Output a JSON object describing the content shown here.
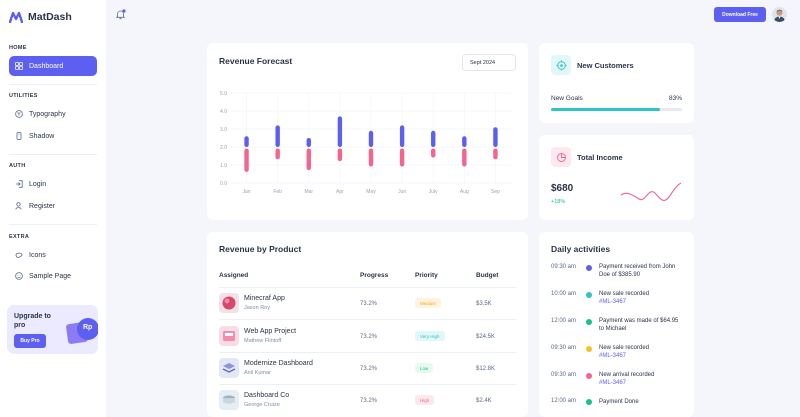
{
  "app": {
    "name": "MatDash"
  },
  "sidebar": {
    "sections": [
      {
        "title": "HOME",
        "items": [
          {
            "label": "Dashboard",
            "icon": "dashboard-icon",
            "active": true
          }
        ]
      },
      {
        "title": "UTILITIES",
        "items": [
          {
            "label": "Typography",
            "icon": "typography-icon"
          },
          {
            "label": "Shadow",
            "icon": "shadow-icon"
          }
        ]
      },
      {
        "title": "AUTH",
        "items": [
          {
            "label": "Login",
            "icon": "login-icon"
          },
          {
            "label": "Register",
            "icon": "register-icon"
          }
        ]
      },
      {
        "title": "EXTRA",
        "items": [
          {
            "label": "Icons",
            "icon": "icons-icon"
          },
          {
            "label": "Sample Page",
            "icon": "sample-page-icon"
          }
        ]
      }
    ],
    "promo": {
      "title": "Upgrade to pro",
      "button": "Buy Pro",
      "badge": "Rp"
    }
  },
  "topbar": {
    "download_label": "Download Free"
  },
  "revenue_forecast": {
    "title": "Revenue Forecast",
    "period": "Sept 2024"
  },
  "chart_data": {
    "type": "bar",
    "title": "Revenue Forecast",
    "categories": [
      "Jan",
      "Feb",
      "Mar",
      "Apr",
      "May",
      "Jun",
      "July",
      "Aug",
      "Sep"
    ],
    "ylim": [
      0,
      5
    ],
    "yticks": [
      "5.0",
      "4.0",
      "3.0",
      "2.0",
      "1.0",
      "0.0"
    ],
    "series": [
      {
        "color": "#5d5ff0",
        "values": [
          0.6,
          1.2,
          0.5,
          1.7,
          0.9,
          1.2,
          0.9,
          0.6,
          1.1
        ]
      },
      {
        "color": "#f3648f",
        "values": [
          1.3,
          0.6,
          1.2,
          0.7,
          1.0,
          1.0,
          0.5,
          1.0,
          0.6
        ]
      }
    ],
    "grid": true
  },
  "revenue_by_product": {
    "title": "Revenue by Product",
    "headers": [
      "Assigned",
      "Progress",
      "Priority",
      "Budget"
    ],
    "rows": [
      {
        "name": "Minecraf App",
        "owner": "Jason Roy",
        "progress": "73.2%",
        "priority": "Medium",
        "budget": "$3.5K",
        "badge_bg": "#fff4de",
        "badge_fg": "#f8a526",
        "img": "minecraft"
      },
      {
        "name": "Web App Project",
        "owner": "Mathew Flintoff",
        "progress": "73.2%",
        "priority": "Very High",
        "budget": "$24.5K",
        "badge_bg": "#e2f8f8",
        "badge_fg": "#2ec4c4",
        "img": "webapp"
      },
      {
        "name": "Modernize Dashboard",
        "owner": "Anil Kumar",
        "progress": "73.2%",
        "priority": "Low",
        "budget": "$12.8K",
        "badge_bg": "#e6fbee",
        "badge_fg": "#13c28d",
        "img": "modernize"
      },
      {
        "name": "Dashboard Co",
        "owner": "George Cruize",
        "progress": "73.2%",
        "priority": "High",
        "budget": "$2.4K",
        "badge_bg": "#fde8ee",
        "badge_fg": "#f3648f",
        "img": "dashboardco"
      }
    ]
  },
  "new_customers": {
    "title": "New Customers",
    "goal_label": "New Goals",
    "goal_value": "83%",
    "goal_fraction": 0.83
  },
  "total_income": {
    "title": "Total Income",
    "value": "$680",
    "delta": "+18%"
  },
  "daily_activities": {
    "title": "Daily activities",
    "items": [
      {
        "time": "09:30 am",
        "color": "#5d5ff0",
        "text": "Payment received from John Doe of $385.90",
        "link": ""
      },
      {
        "time": "10:00 am",
        "color": "#2ec4c4",
        "text": "New sale recorded",
        "link": "#ML-3467"
      },
      {
        "time": "12:00 am",
        "color": "#13c28d",
        "text": "Payment was made of $64.95 to Michael",
        "link": ""
      },
      {
        "time": "09:30 am",
        "color": "#f8c026",
        "text": "New sale recorded",
        "link": "#ML-3467"
      },
      {
        "time": "09:30 am",
        "color": "#f3648f",
        "text": "New arrival recorded",
        "link": "#ML-3467"
      },
      {
        "time": "12:00 am",
        "color": "#13c28d",
        "text": "Payment Done",
        "link": ""
      }
    ]
  }
}
